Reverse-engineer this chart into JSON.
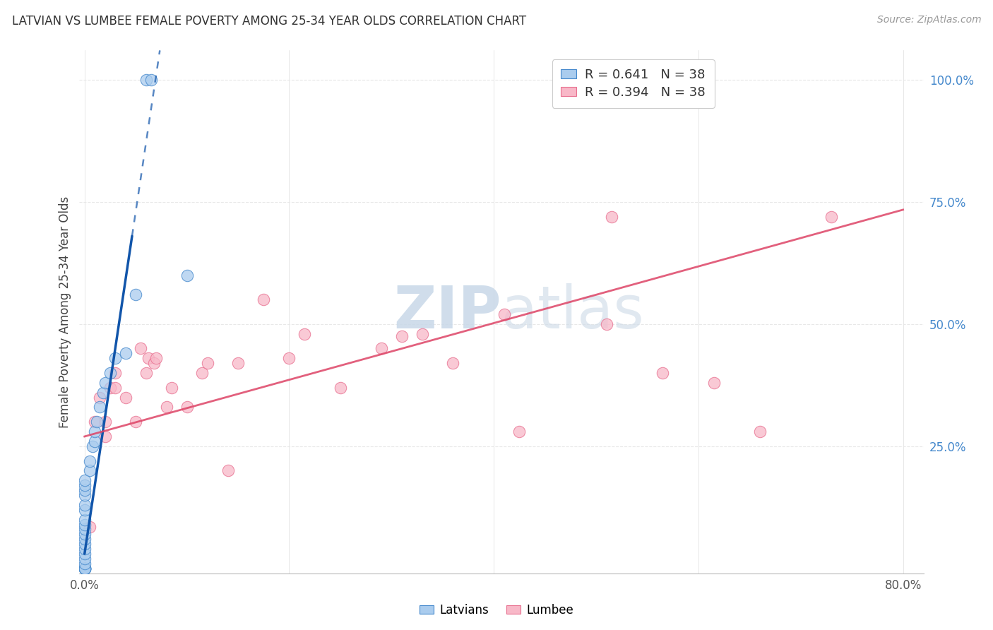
{
  "title": "LATVIAN VS LUMBEE FEMALE POVERTY AMONG 25-34 YEAR OLDS CORRELATION CHART",
  "source": "Source: ZipAtlas.com",
  "ylabel": "Female Poverty Among 25-34 Year Olds",
  "xlim": [
    -0.005,
    0.82
  ],
  "ylim": [
    -0.01,
    1.06
  ],
  "latvian_color": "#aaccee",
  "lumbee_color": "#f8b8c8",
  "latvian_edge_color": "#4488cc",
  "lumbee_edge_color": "#e87090",
  "latvian_line_color": "#1155aa",
  "lumbee_line_color": "#dd4466",
  "watermark_color": "#dde8f0",
  "grid_color": "#e8e8e8",
  "right_tick_color": "#4488cc",
  "legend_latvian_R": "0.641",
  "legend_latvian_N": "38",
  "legend_lumbee_R": "0.394",
  "legend_lumbee_N": "38",
  "latvian_x": [
    0.0,
    0.0,
    0.0,
    0.0,
    0.0,
    0.0,
    0.0,
    0.0,
    0.0,
    0.0,
    0.0,
    0.0,
    0.0,
    0.0,
    0.0,
    0.0,
    0.0,
    0.0,
    0.0,
    0.0,
    0.0,
    0.0,
    0.005,
    0.005,
    0.008,
    0.01,
    0.01,
    0.012,
    0.015,
    0.018,
    0.02,
    0.025,
    0.03,
    0.04,
    0.05,
    0.06,
    0.065,
    0.1
  ],
  "latvian_y": [
    0.0,
    0.0,
    0.0,
    0.0,
    0.0,
    0.0,
    0.01,
    0.02,
    0.03,
    0.04,
    0.05,
    0.06,
    0.07,
    0.08,
    0.09,
    0.1,
    0.12,
    0.13,
    0.15,
    0.16,
    0.17,
    0.18,
    0.2,
    0.22,
    0.25,
    0.26,
    0.28,
    0.3,
    0.33,
    0.36,
    0.38,
    0.4,
    0.43,
    0.44,
    0.56,
    1.0,
    1.0,
    0.6
  ],
  "lumbee_x": [
    0.01,
    0.015,
    0.02,
    0.02,
    0.025,
    0.03,
    0.03,
    0.04,
    0.05,
    0.055,
    0.06,
    0.062,
    0.068,
    0.07,
    0.08,
    0.085,
    0.1,
    0.115,
    0.12,
    0.14,
    0.15,
    0.175,
    0.2,
    0.215,
    0.25,
    0.29,
    0.31,
    0.33,
    0.36,
    0.41,
    0.425,
    0.51,
    0.515,
    0.565,
    0.615,
    0.66,
    0.73,
    0.005
  ],
  "lumbee_y": [
    0.3,
    0.35,
    0.27,
    0.3,
    0.37,
    0.37,
    0.4,
    0.35,
    0.3,
    0.45,
    0.4,
    0.43,
    0.42,
    0.43,
    0.33,
    0.37,
    0.33,
    0.4,
    0.42,
    0.2,
    0.42,
    0.55,
    0.43,
    0.48,
    0.37,
    0.45,
    0.475,
    0.48,
    0.42,
    0.52,
    0.28,
    0.5,
    0.72,
    0.4,
    0.38,
    0.28,
    0.72,
    0.085
  ],
  "lat_line_x0": 0.0,
  "lat_line_y0": 0.03,
  "lat_line_slope": 14.0,
  "lum_line_x0": 0.0,
  "lum_line_y0": 0.27,
  "lum_line_slope": 0.58
}
